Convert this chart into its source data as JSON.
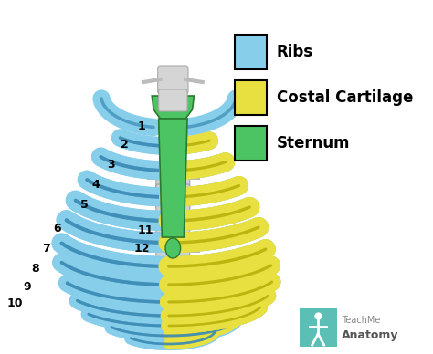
{
  "background_color": "#ffffff",
  "legend_items": [
    {
      "label": "Ribs",
      "color": "#87CEEB",
      "edge_color": "#3a8ab5"
    },
    {
      "label": "Costal Cartilage",
      "color": "#E8E040",
      "edge_color": "#b0a800"
    },
    {
      "label": "Sternum",
      "color": "#4CC464",
      "edge_color": "#2a7a30"
    }
  ],
  "figsize": [
    4.74,
    3.88
  ],
  "dpi": 100,
  "number_font_size": 9
}
